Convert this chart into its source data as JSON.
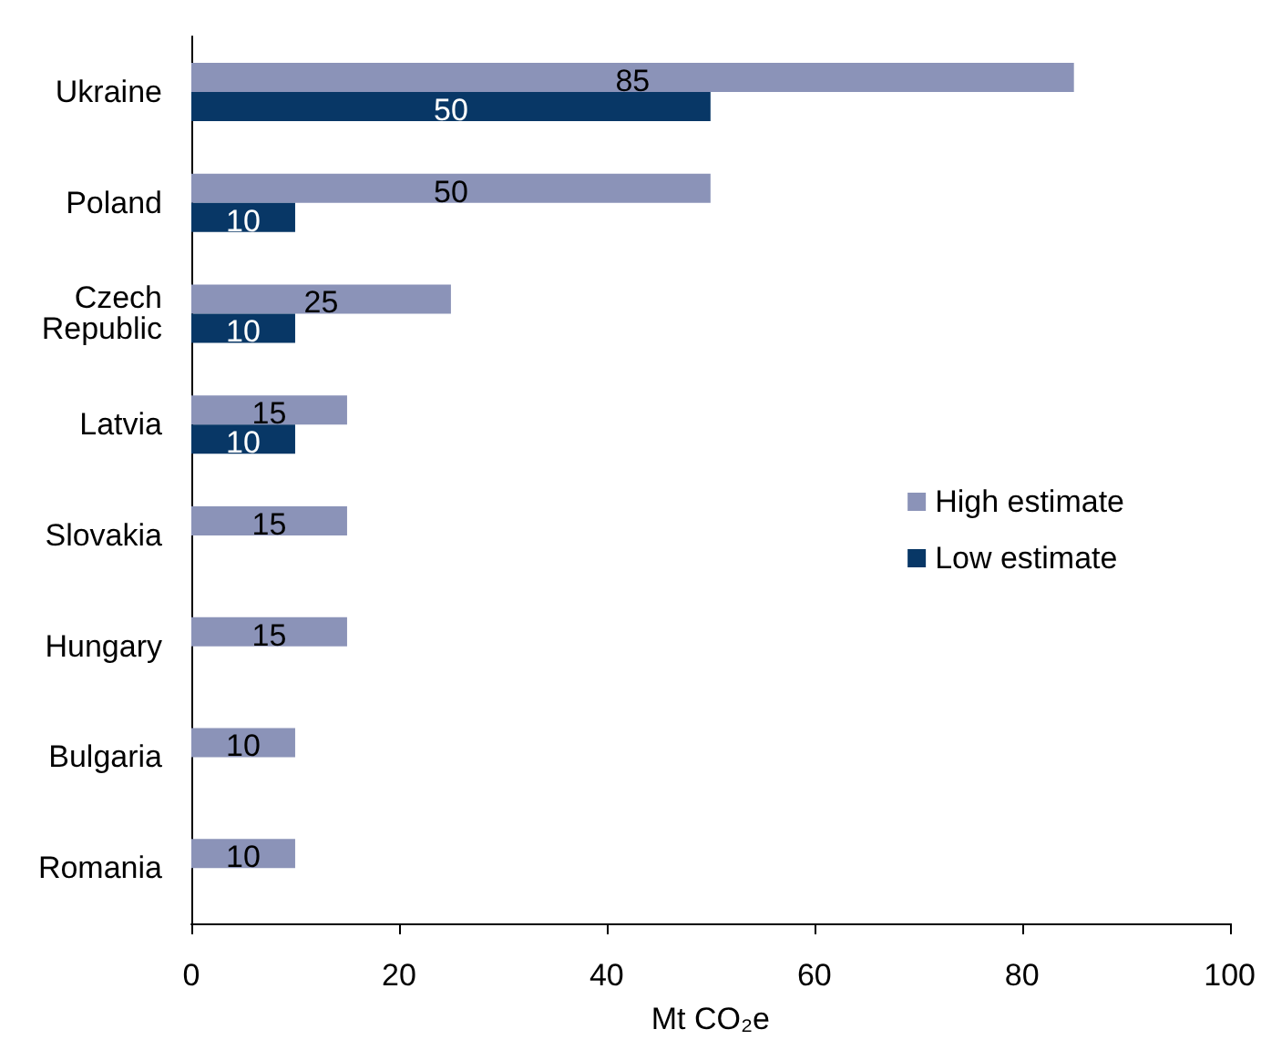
{
  "chart_data": {
    "type": "bar",
    "orientation": "horizontal",
    "xlabel": "Mt CO₂e",
    "categories": [
      "Ukraine",
      "Poland",
      "Czech\nRepublic",
      "Latvia",
      "Slovakia",
      "Hungary",
      "Bulgaria",
      "Romania"
    ],
    "series": [
      {
        "name": "High estimate",
        "color": "#8b93b8",
        "values": [
          85,
          50,
          25,
          15,
          15,
          15,
          10,
          10
        ]
      },
      {
        "name": "Low estimate",
        "color": "#083766",
        "values": [
          50,
          10,
          10,
          10,
          null,
          null,
          null,
          null
        ]
      }
    ],
    "xlim": [
      0,
      100
    ],
    "xticks": [
      0,
      20,
      40,
      60,
      80,
      100
    ],
    "grid": false,
    "legend": "right",
    "data_labels": true
  }
}
